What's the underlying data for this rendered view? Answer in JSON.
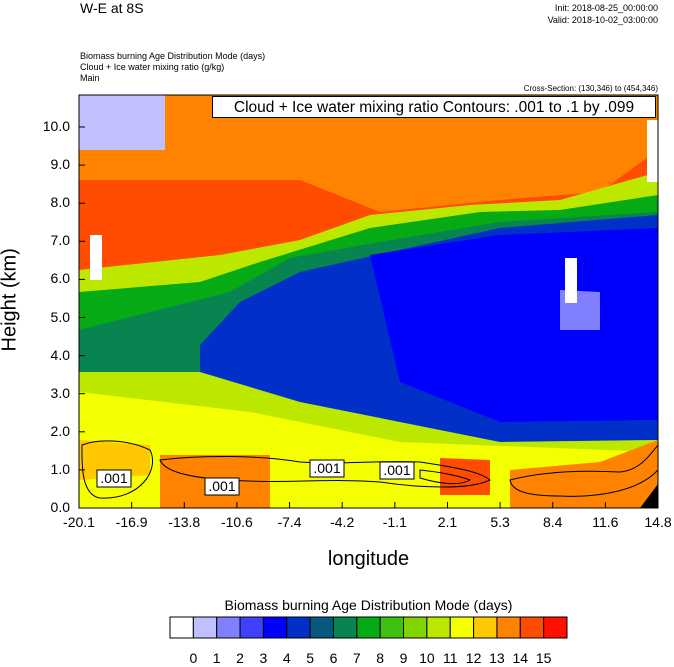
{
  "header": {
    "title": "W-E at 8S",
    "init": "Init: 2018-08-25_00:00:00",
    "valid": "Valid: 2018-10-02_03:00:00",
    "fields": [
      "Biomass burning Age Distribution Mode   (days)",
      "Cloud + Ice water mixing ratio   (g/kg)",
      "Main"
    ],
    "cross_section": "Cross-Section: (130,346) to (454,346)"
  },
  "chart_data": {
    "type": "heatmap",
    "title": "W-E at 8S",
    "contour_info": "Cloud + Ice water mixing ratio Contours: .001 to .1 by .099",
    "contour_labels": [
      ".001",
      ".001",
      ".001",
      ".001"
    ],
    "xlabel": "longitude",
    "ylabel": "Height (km)",
    "xlim": [
      -20.1,
      14.8
    ],
    "ylim": [
      0,
      10.8
    ],
    "x_ticks": [
      "-20.1",
      "-16.9",
      "-13.8",
      "-10.6",
      "-7.4",
      "-4.2",
      "-1.1",
      "2.1",
      "5.3",
      "8.4",
      "11.6",
      "14.8"
    ],
    "y_ticks": [
      "0.0",
      "1.0",
      "2.0",
      "3.0",
      "4.0",
      "5.0",
      "6.0",
      "7.0",
      "8.0",
      "9.0",
      "10.0"
    ],
    "colorbar": {
      "title": "Biomass burning Age Distribution Mode  (days)",
      "levels": [
        "0",
        "1",
        "2",
        "3",
        "4",
        "5",
        "6",
        "7",
        "8",
        "9",
        "10",
        "11",
        "12",
        "13",
        "14",
        "15"
      ],
      "colors": [
        "#ffffff",
        "#c0c0ff",
        "#8080ff",
        "#4040ff",
        "#0000ff",
        "#0030c8",
        "#08577f",
        "#078450",
        "#05aa14",
        "#40c010",
        "#80d400",
        "#bce800",
        "#f4ff00",
        "#ffc800",
        "#ff8200",
        "#ff4c00",
        "#ff1000"
      ]
    }
  }
}
